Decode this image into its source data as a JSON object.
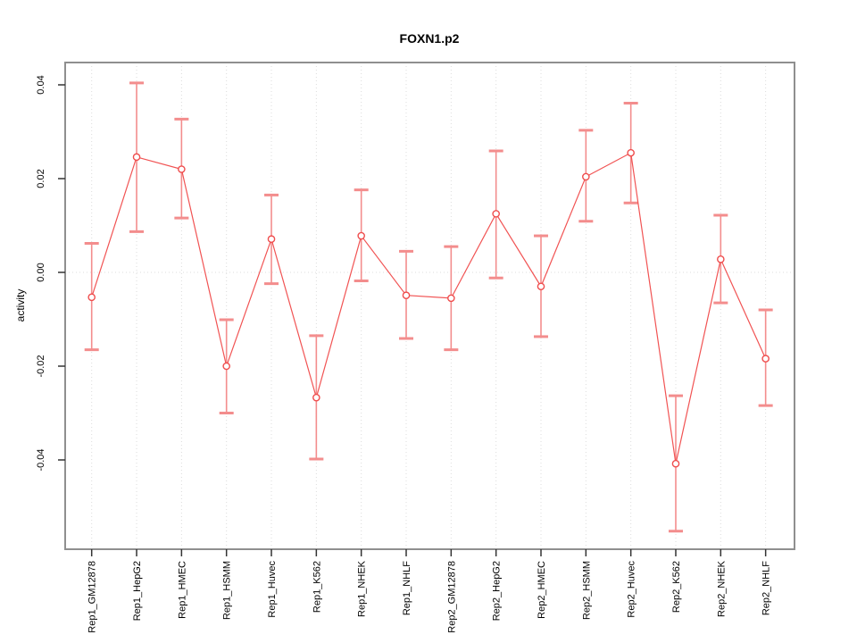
{
  "title": "FOXN1.p2",
  "ylabel": "activity",
  "chart_data": {
    "type": "line",
    "title": "FOXN1.p2",
    "xlabel": "",
    "ylabel": "activity",
    "legend": "none",
    "grid": "vertical dotted gridline at each category; dotted horizontal line at y=0",
    "categories": [
      "Rep1_GM12878",
      "Rep1_HepG2",
      "Rep1_HMEC",
      "Rep1_HSMM",
      "Rep1_Huvec",
      "Rep1_K562",
      "Rep1_NHEK",
      "Rep1_NHLF",
      "Rep2_GM12878",
      "Rep2_HepG2",
      "Rep2_HMEC",
      "Rep2_HSMM",
      "Rep2_Huvec",
      "Rep2_K562",
      "Rep2_NHEK",
      "Rep2_NHLF"
    ],
    "series": [
      {
        "name": "activity",
        "marker": "open-circle",
        "values": [
          -0.0053,
          0.0246,
          0.022,
          -0.02,
          0.0071,
          -0.0267,
          0.0078,
          -0.0049,
          -0.0055,
          0.0125,
          -0.003,
          0.0204,
          0.0255,
          -0.0408,
          0.0028,
          -0.0184
        ],
        "error_low": [
          -0.0165,
          0.0087,
          0.0116,
          -0.03,
          -0.0024,
          -0.0398,
          -0.0018,
          -0.0141,
          -0.0165,
          -0.0012,
          -0.0137,
          0.0109,
          0.0148,
          -0.0552,
          -0.0065,
          -0.0284
        ],
        "error_high": [
          0.0062,
          0.0404,
          0.0327,
          -0.0101,
          0.0165,
          -0.0135,
          0.0176,
          0.0045,
          0.0055,
          0.0259,
          0.0078,
          0.0303,
          0.0361,
          -0.0263,
          0.0122,
          -0.008
        ]
      }
    ],
    "yticks": [
      -0.04,
      -0.02,
      0.0,
      0.02,
      0.04
    ],
    "ytick_labels": [
      "-0.04",
      "-0.02",
      "0.00",
      "0.02",
      "0.04"
    ],
    "ylim": [
      -0.059,
      0.0448
    ],
    "colors": {
      "line": "#f15353",
      "error_bar": "#f38d8d",
      "point_stroke": "#ef4d4d",
      "point_fill": "#ffffff",
      "grid": "#dcdcdc",
      "zero_line": "#dcdcdc",
      "frame": "#8f8f8f",
      "tick": "#333333",
      "text": "#000000"
    }
  }
}
